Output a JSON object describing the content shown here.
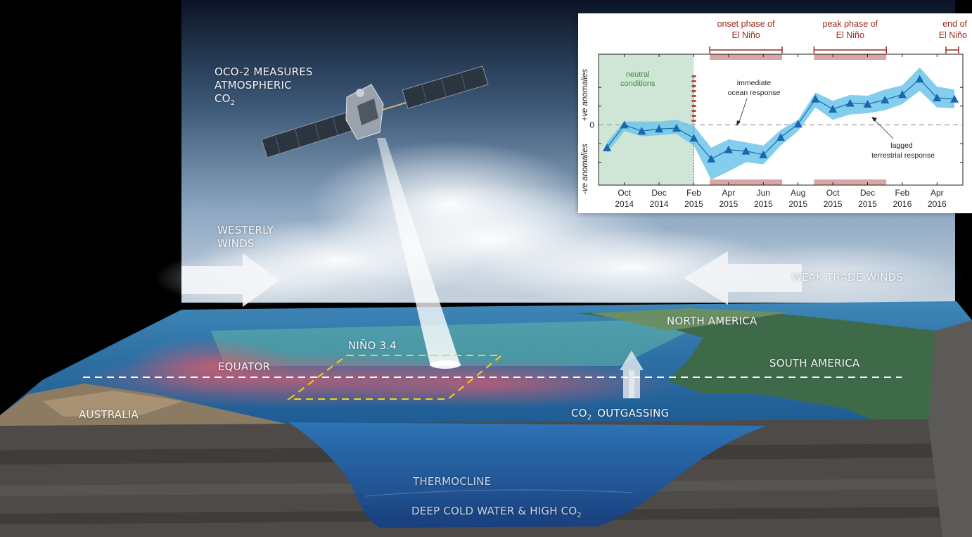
{
  "labels": {
    "oco2": [
      "OCO-2 MEASURES",
      "ATMOSPHERIC",
      "CO",
      "2"
    ],
    "westerly": [
      "WESTERLY",
      "WINDS"
    ],
    "trade": "WEAK TRADE WINDS",
    "north_america": "NORTH AMERICA",
    "south_america": "SOUTH AMERICA",
    "nino": "NIÑO 3.4",
    "equator": "EQUATOR",
    "australia": "AUSTRALIA",
    "co2_out": [
      "CO",
      "2",
      "OUTGASSING"
    ],
    "thermocline": "THERMOCLINE",
    "deep": [
      "DEEP COLD WATER & HIGH CO",
      "2"
    ]
  },
  "chart_data": {
    "type": "line",
    "x_ticks": [
      "Oct 2014",
      "Dec 2014",
      "Feb 2015",
      "Apr 2015",
      "Jun 2015",
      "Aug 2015",
      "Oct 2015",
      "Dec 2015",
      "Feb 2016",
      "Apr 2016"
    ],
    "x": [
      "2014-09",
      "2014-10",
      "2014-11",
      "2014-12",
      "2015-01",
      "2015-02",
      "2015-03",
      "2015-04",
      "2015-05",
      "2015-06",
      "2015-07",
      "2015-08",
      "2015-09",
      "2015-10",
      "2015-11",
      "2015-12",
      "2016-01",
      "2016-02",
      "2016-03",
      "2016-04",
      "2016-05"
    ],
    "values": [
      -0.55,
      0.0,
      -0.15,
      -0.1,
      -0.08,
      -0.32,
      -0.82,
      -0.6,
      -0.63,
      -0.72,
      -0.3,
      0.02,
      0.62,
      0.38,
      0.52,
      0.5,
      0.6,
      0.73,
      1.1,
      0.65,
      0.62
    ],
    "upper": [
      -0.42,
      0.08,
      0.08,
      0.08,
      0.12,
      -0.02,
      -0.55,
      -0.35,
      -0.42,
      -0.5,
      -0.12,
      0.12,
      0.78,
      0.58,
      0.72,
      0.7,
      0.85,
      0.95,
      1.38,
      0.92,
      0.85
    ],
    "lower": [
      -0.68,
      -0.15,
      -0.28,
      -0.25,
      -0.22,
      -0.5,
      -1.32,
      -1.12,
      -0.9,
      -0.95,
      -0.5,
      -0.15,
      0.42,
      0.12,
      0.25,
      0.28,
      0.35,
      0.5,
      0.82,
      0.42,
      0.4
    ],
    "ylim": [
      -1.45,
      1.7
    ],
    "zero_label": "0",
    "ylabels": {
      "positive": "+ve anomalies",
      "negative": "-ve anomalies"
    },
    "phases": [
      {
        "text": [
          "onset phase of",
          "El Niño"
        ],
        "start": "2015-03",
        "end": "2015-07"
      },
      {
        "text": [
          "peak phase of",
          "El Niño"
        ],
        "start": "2015-09",
        "end": "2016-01"
      },
      {
        "text": [
          "end of",
          "El Niño"
        ],
        "start": "2016-05",
        "end": "2016-05"
      }
    ],
    "neutral": {
      "text": [
        "neutral",
        "conditions"
      ],
      "end": "2015-02"
    },
    "annotations": [
      {
        "text": [
          "immediate",
          "ocean response"
        ]
      },
      {
        "text": [
          "lagged",
          "terrestrial response"
        ]
      }
    ],
    "colors": {
      "line": "#1a67b0",
      "band": "#6ec6ea",
      "neutral": "#cfe6d6",
      "phase": "#d9a6a6",
      "phase_text": "#9b2a1d",
      "neutral_text": "#3d8a3b"
    }
  }
}
